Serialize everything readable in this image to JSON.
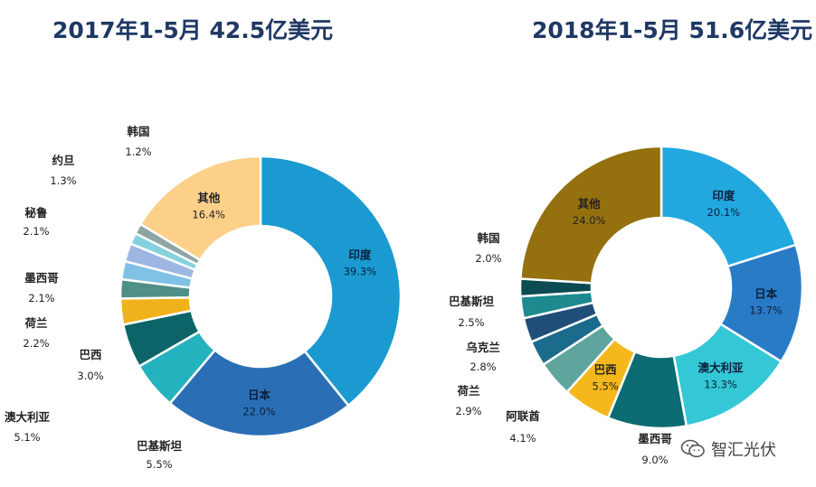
{
  "watermark": {
    "text": "智汇光伏",
    "icon": "wechat-icon"
  },
  "chart_data": [
    {
      "type": "pie",
      "title": "2017年1-5月 42.5亿美元",
      "donut": true,
      "slices": [
        {
          "name": "印度",
          "pct_label": "39.3%",
          "value": 39.3,
          "color": "#1a9ad0"
        },
        {
          "name": "日本",
          "pct_label": "22.0%",
          "value": 22.0,
          "color": "#2a6fb5"
        },
        {
          "name": "巴基斯坦",
          "pct_label": "5.5%",
          "value": 5.5,
          "color": "#24b2be"
        },
        {
          "name": "澳大利亚",
          "pct_label": "5.1%",
          "value": 5.1,
          "color": "#0d6468"
        },
        {
          "name": "巴西",
          "pct_label": "3.0%",
          "value": 3.0,
          "color": "#f0b21a"
        },
        {
          "name": "荷兰",
          "pct_label": "2.2%",
          "value": 2.2,
          "color": "#4e8f87"
        },
        {
          "name": "墨西哥",
          "pct_label": "2.1%",
          "value": 2.1,
          "color": "#80c1e6"
        },
        {
          "name": "秘鲁",
          "pct_label": "2.1%",
          "value": 2.1,
          "color": "#9db7e2"
        },
        {
          "name": "约旦",
          "pct_label": "1.3%",
          "value": 1.3,
          "color": "#85d2de"
        },
        {
          "name": "韩国",
          "pct_label": "1.2%",
          "value": 1.2,
          "color": "#8fa5a5"
        },
        {
          "name": "其他",
          "pct_label": "16.4%",
          "value": 16.4,
          "color": "#fdd08a"
        }
      ]
    },
    {
      "type": "pie",
      "title": "2018年1-5月 51.6亿美元",
      "donut": true,
      "slices": [
        {
          "name": "印度",
          "pct_label": "20.1%",
          "value": 20.1,
          "color": "#22a8df"
        },
        {
          "name": "日本",
          "pct_label": "13.7%",
          "value": 13.7,
          "color": "#2a7bc6"
        },
        {
          "name": "澳大利亚",
          "pct_label": "13.3%",
          "value": 13.3,
          "color": "#34c7d6"
        },
        {
          "name": "墨西哥",
          "pct_label": "9.0%",
          "value": 9.0,
          "color": "#0b6c73"
        },
        {
          "name": "巴西",
          "pct_label": "5.5%",
          "value": 5.5,
          "color": "#f5b81c"
        },
        {
          "name": "阿联酋",
          "pct_label": "4.1%",
          "value": 4.1,
          "color": "#5fa59d"
        },
        {
          "name": "荷兰",
          "pct_label": "2.9%",
          "value": 2.9,
          "color": "#1b6b8c"
        },
        {
          "name": "乌克兰",
          "pct_label": "2.8%",
          "value": 2.8,
          "color": "#1f4f79"
        },
        {
          "name": "巴基斯坦",
          "pct_label": "2.5%",
          "value": 2.5,
          "color": "#1d8a90"
        },
        {
          "name": "韩国",
          "pct_label": "2.0%",
          "value": 2.0,
          "color": "#0d4b52"
        },
        {
          "name": "其他",
          "pct_label": "24.0%",
          "value": 24.0,
          "color": "#94700e"
        }
      ]
    }
  ]
}
